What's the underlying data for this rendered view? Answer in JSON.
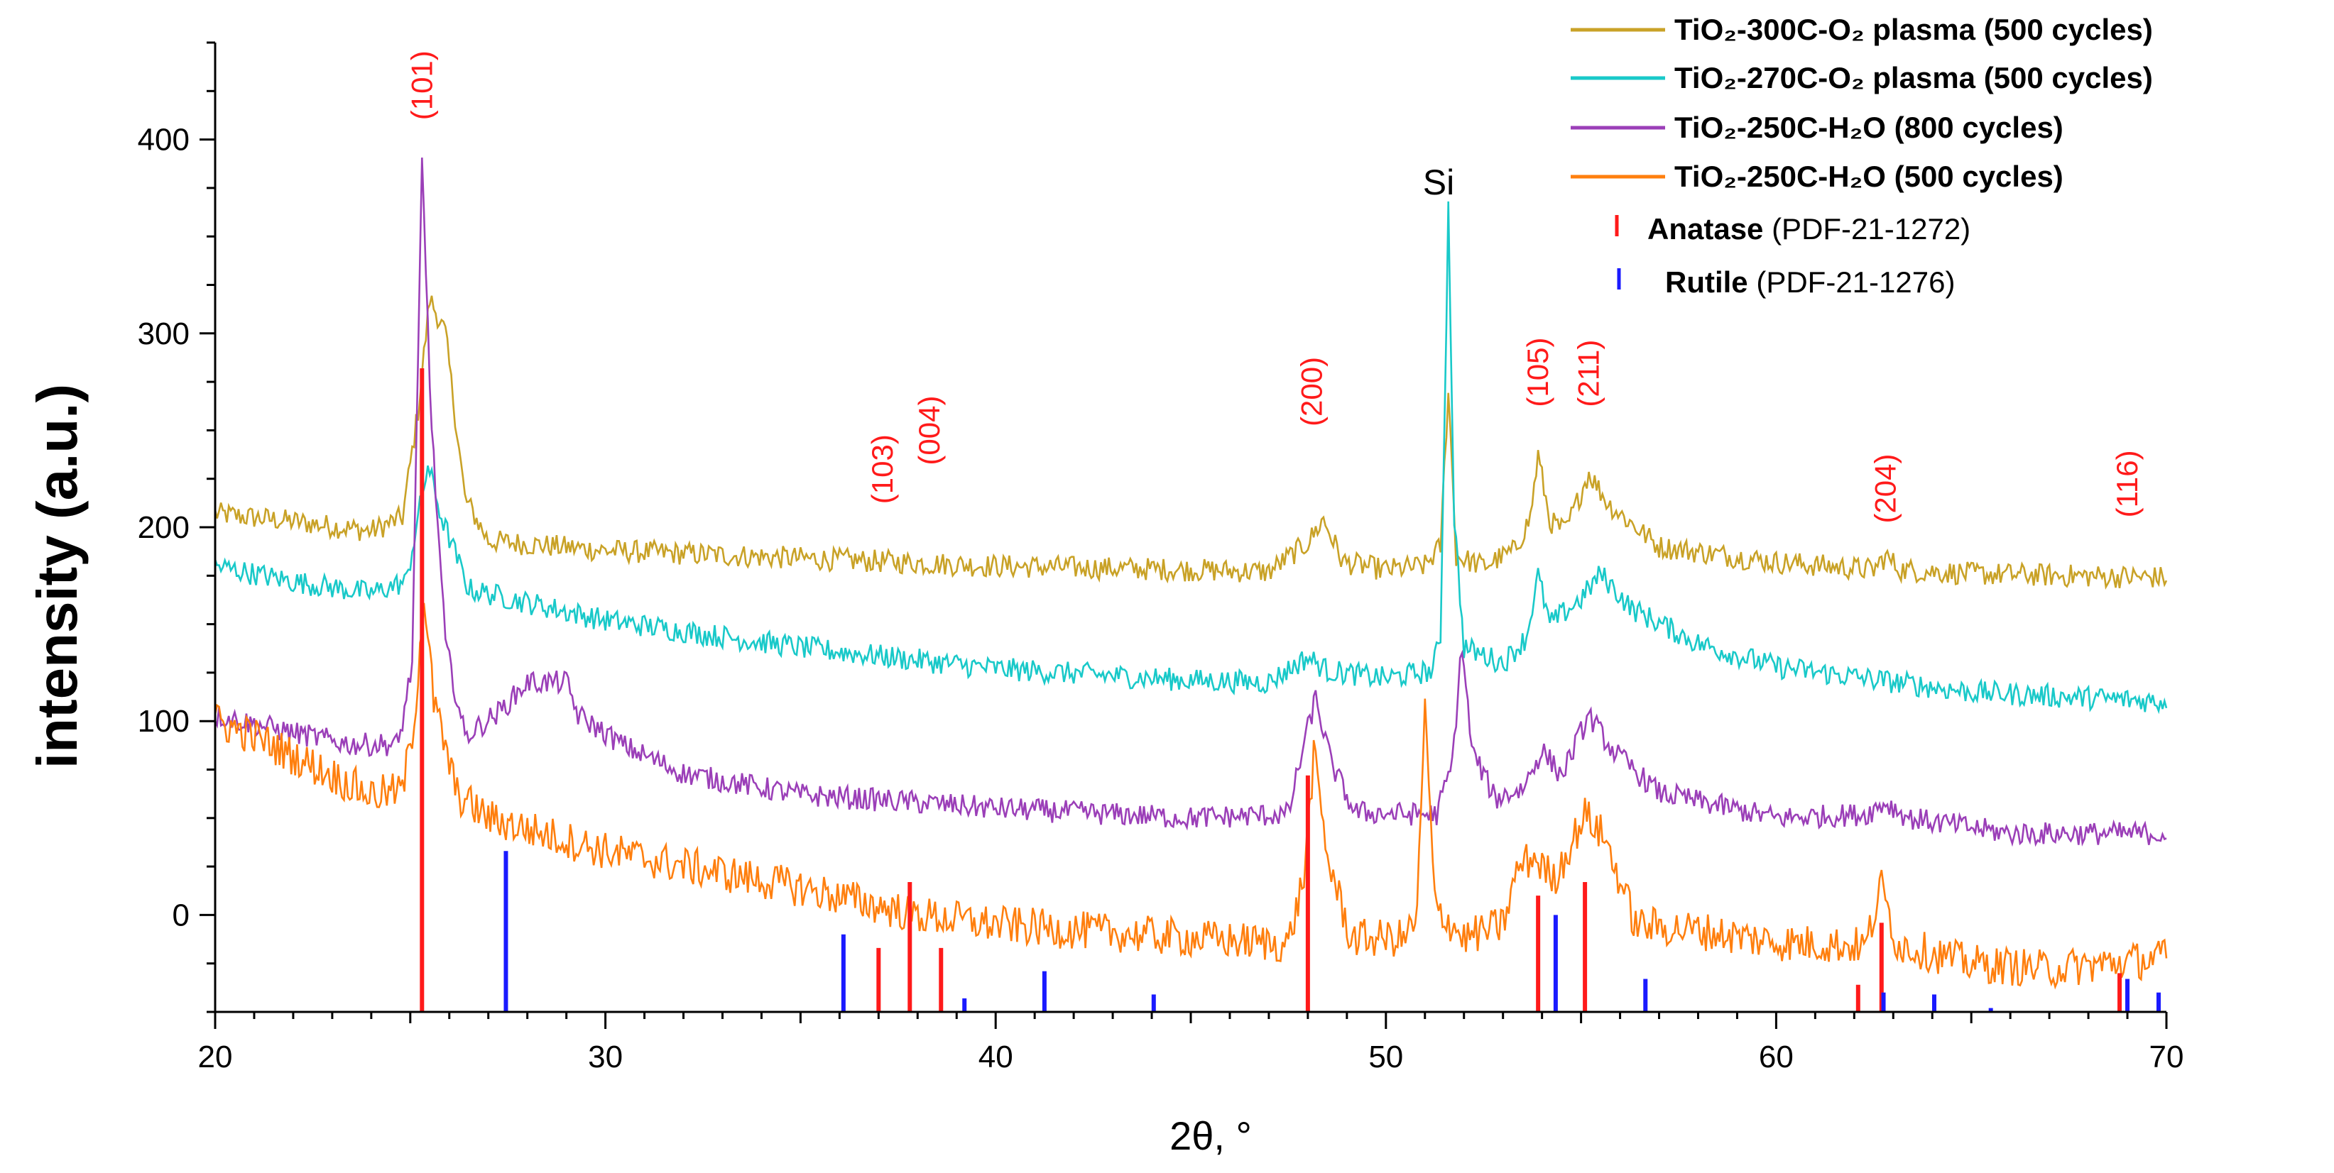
{
  "chart_data": {
    "type": "line",
    "title": "",
    "xlabel": "2θ, °",
    "ylabel": "intensity (a.u.)",
    "xlim": [
      20,
      70
    ],
    "ylim": [
      -50,
      450
    ],
    "x_ticks": [
      20,
      30,
      40,
      50,
      60,
      70
    ],
    "y_ticks": [
      0,
      100,
      200,
      300,
      400
    ],
    "legend_placement": "top-right",
    "series": [
      {
        "name": "TiO₂-300C-O₂ plasma (500 cycles)",
        "color": "#c9a227",
        "noise": 6,
        "points": [
          [
            20,
            207
          ],
          [
            22,
            203
          ],
          [
            24,
            198
          ],
          [
            24.8,
            205
          ],
          [
            25.2,
            260
          ],
          [
            25.5,
            318
          ],
          [
            25.9,
            300
          ],
          [
            26.4,
            215
          ],
          [
            27,
            193
          ],
          [
            30,
            188
          ],
          [
            35,
            184
          ],
          [
            40,
            180
          ],
          [
            45,
            178
          ],
          [
            47,
            177
          ],
          [
            48,
            192
          ],
          [
            48.4,
            204
          ],
          [
            48.9,
            182
          ],
          [
            50,
            178
          ],
          [
            51,
            180
          ],
          [
            51.4,
            190
          ],
          [
            51.6,
            272
          ],
          [
            51.8,
            185
          ],
          [
            52.5,
            180
          ],
          [
            53.3,
            188
          ],
          [
            53.7,
            205
          ],
          [
            53.9,
            237
          ],
          [
            54.2,
            203
          ],
          [
            54.6,
            198
          ],
          [
            55.2,
            228
          ],
          [
            55.7,
            212
          ],
          [
            57,
            190
          ],
          [
            60,
            182
          ],
          [
            62.5,
            178
          ],
          [
            62.8,
            185
          ],
          [
            63.2,
            178
          ],
          [
            65,
            176
          ],
          [
            70,
            174
          ]
        ]
      },
      {
        "name": "TiO₂-270C-O₂ plasma (500 cycles)",
        "color": "#19c9c9",
        "noise": 6,
        "points": [
          [
            20,
            180
          ],
          [
            22,
            172
          ],
          [
            24,
            166
          ],
          [
            24.9,
            172
          ],
          [
            25.2,
            205
          ],
          [
            25.45,
            232
          ],
          [
            25.8,
            205
          ],
          [
            26.5,
            168
          ],
          [
            30,
            152
          ],
          [
            35,
            138
          ],
          [
            40,
            127
          ],
          [
            45,
            121
          ],
          [
            47,
            120
          ],
          [
            48,
            133
          ],
          [
            48.5,
            126
          ],
          [
            50,
            122
          ],
          [
            51.2,
            126
          ],
          [
            51.4,
            145
          ],
          [
            51.6,
            365
          ],
          [
            51.75,
            205
          ],
          [
            52,
            138
          ],
          [
            53,
            130
          ],
          [
            53.6,
            143
          ],
          [
            53.9,
            175
          ],
          [
            54.2,
            150
          ],
          [
            55,
            163
          ],
          [
            55.5,
            176
          ],
          [
            56.3,
            158
          ],
          [
            58,
            140
          ],
          [
            60,
            128
          ],
          [
            65,
            115
          ],
          [
            70,
            110
          ]
        ]
      },
      {
        "name": "TiO₂-250C-H₂O (800 cycles)",
        "color": "#9b3fb8",
        "noise": 6,
        "points": [
          [
            20,
            103
          ],
          [
            22,
            94
          ],
          [
            23.5,
            88
          ],
          [
            24.7,
            88
          ],
          [
            25.05,
            130
          ],
          [
            25.3,
            388
          ],
          [
            25.55,
            250
          ],
          [
            25.9,
            140
          ],
          [
            26.4,
            92
          ],
          [
            27.3,
            105
          ],
          [
            28,
            120
          ],
          [
            29,
            120
          ],
          [
            29.3,
            103
          ],
          [
            30.5,
            87
          ],
          [
            32,
            73
          ],
          [
            35,
            62
          ],
          [
            38,
            58
          ],
          [
            40,
            55
          ],
          [
            45,
            50
          ],
          [
            47.5,
            52
          ],
          [
            47.9,
            88
          ],
          [
            48.2,
            112
          ],
          [
            48.6,
            78
          ],
          [
            49.2,
            53
          ],
          [
            50.5,
            52
          ],
          [
            51.3,
            52
          ],
          [
            51.7,
            78
          ],
          [
            51.95,
            140
          ],
          [
            52.2,
            85
          ],
          [
            52.8,
            60
          ],
          [
            53.5,
            65
          ],
          [
            54,
            85
          ],
          [
            54.5,
            72
          ],
          [
            55.2,
            103
          ],
          [
            55.8,
            85
          ],
          [
            57,
            63
          ],
          [
            60,
            50
          ],
          [
            62.3,
            52
          ],
          [
            62.8,
            58
          ],
          [
            63.4,
            50
          ],
          [
            66,
            42
          ],
          [
            70,
            42
          ]
        ]
      },
      {
        "name": "TiO₂-250C-H₂O (500 cycles)",
        "color": "#ff7f0e",
        "noise": 10,
        "points": [
          [
            20,
            100
          ],
          [
            21,
            92
          ],
          [
            22,
            82
          ],
          [
            23,
            72
          ],
          [
            24,
            62
          ],
          [
            24.8,
            64
          ],
          [
            25.1,
            100
          ],
          [
            25.35,
            165
          ],
          [
            25.6,
            110
          ],
          [
            26.2,
            62
          ],
          [
            27,
            50
          ],
          [
            30,
            33
          ],
          [
            35,
            14
          ],
          [
            38,
            0
          ],
          [
            40,
            -5
          ],
          [
            45,
            -12
          ],
          [
            47.5,
            -15
          ],
          [
            47.9,
            20
          ],
          [
            48.15,
            82
          ],
          [
            48.5,
            30
          ],
          [
            49.1,
            -12
          ],
          [
            50.5,
            -12
          ],
          [
            50.8,
            0
          ],
          [
            51.0,
            107
          ],
          [
            51.25,
            5
          ],
          [
            52,
            -12
          ],
          [
            53,
            -5
          ],
          [
            53.4,
            25
          ],
          [
            53.8,
            30
          ],
          [
            54.3,
            18
          ],
          [
            55.1,
            52
          ],
          [
            55.6,
            40
          ],
          [
            56.4,
            -5
          ],
          [
            58,
            -8
          ],
          [
            60,
            -14
          ],
          [
            62.3,
            -16
          ],
          [
            62.7,
            15
          ],
          [
            63.1,
            -15
          ],
          [
            65,
            -25
          ],
          [
            67,
            -28
          ],
          [
            70,
            -22
          ]
        ]
      }
    ],
    "reference_patterns": [
      {
        "name": "Anatase",
        "pdf": "(PDF-21-1272)",
        "color": "#ff1a1a",
        "lines": [
          [
            25.3,
            282
          ],
          [
            37.0,
            -17
          ],
          [
            37.8,
            17
          ],
          [
            38.6,
            -17
          ],
          [
            48.0,
            72
          ],
          [
            53.9,
            10
          ],
          [
            55.1,
            17
          ],
          [
            62.1,
            -36
          ],
          [
            62.7,
            -4
          ],
          [
            68.8,
            -30
          ]
        ]
      },
      {
        "name": "Rutile",
        "pdf": "(PDF-21-1276)",
        "color": "#1a1aff",
        "lines": [
          [
            27.45,
            33
          ],
          [
            36.1,
            -10
          ],
          [
            39.2,
            -43
          ],
          [
            41.25,
            -29
          ],
          [
            44.05,
            -41
          ],
          [
            54.35,
            0
          ],
          [
            56.65,
            -33
          ],
          [
            62.75,
            -40
          ],
          [
            64.05,
            -41
          ],
          [
            65.5,
            -48
          ],
          [
            69.0,
            -33
          ],
          [
            69.8,
            -40
          ]
        ]
      }
    ],
    "annotations": [
      {
        "text": "(101)",
        "x": 25.3,
        "y": 410,
        "color": "#ff1a1a"
      },
      {
        "text": "(103)",
        "x": 37.1,
        "y": 212,
        "color": "#ff1a1a"
      },
      {
        "text": "(004)",
        "x": 38.3,
        "y": 232,
        "color": "#ff1a1a"
      },
      {
        "text": "(200)",
        "x": 48.1,
        "y": 252,
        "color": "#ff1a1a"
      },
      {
        "text": "(105)",
        "x": 53.9,
        "y": 262,
        "color": "#ff1a1a"
      },
      {
        "text": "(211)",
        "x": 55.2,
        "y": 262,
        "color": "#ff1a1a"
      },
      {
        "text": "(204)",
        "x": 62.8,
        "y": 202,
        "color": "#ff1a1a"
      },
      {
        "text": "(116)",
        "x": 69.0,
        "y": 205,
        "color": "#ff1a1a"
      },
      {
        "text": "Si",
        "x": 51.35,
        "y": 365,
        "color": "#000000"
      }
    ]
  }
}
